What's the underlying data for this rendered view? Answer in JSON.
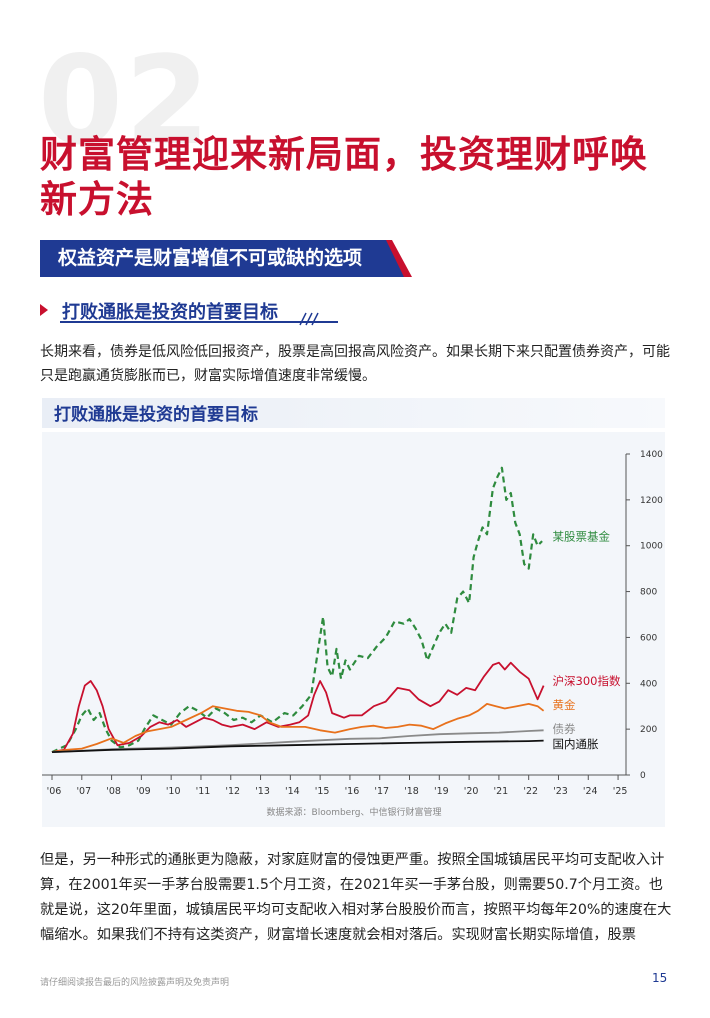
{
  "section_number": "02",
  "title": "财富管理迎来新局面，投资理财呼唤新方法",
  "banner": "权益资产是财富增值不可或缺的选项",
  "subheading": "打败通胀是投资的首要目标",
  "para1": "长期来看，债券是低风险低回报资产，股票是高回报高风险资产。如果长期下来只配置债券资产，可能只是跑赢通货膨胀而已，财富实际增值速度非常缓慢。",
  "chart_heading": "打败通胀是投资的首要目标",
  "chart_source": "数据来源：Bloomberg、中信银行财富管理",
  "para2": "但是，另一种形式的通胀更为隐蔽，对家庭财富的侵蚀更严重。按照全国城镇居民平均可支配收入计算，在2001年买一手茅台股需要1.5个月工资，在2021年买一手茅台股，则需要50.7个月工资。也就是说，这20年里面，城镇居民平均可支配收入相对茅台股股价而言，按照平均每年20%的速度在大幅缩水。如果我们不持有这类资产，财富增长速度就会相对落后。实现财富长期实际增值，股票",
  "footer_note": "请仔细阅读报告最后的风险披露声明及免责声明",
  "page_number": "15",
  "colors": {
    "brand_red": "#c8102e",
    "brand_blue": "#1f3a93"
  },
  "chart_data": {
    "type": "line",
    "x_ticks": [
      "'06",
      "'07",
      "'08",
      "'09",
      "'10",
      "'11",
      "'12",
      "'13",
      "'14",
      "'15",
      "'16",
      "'17",
      "'18",
      "'19",
      "'20",
      "'21",
      "'22",
      "'23",
      "'24",
      "'25"
    ],
    "y_ticks": [
      0,
      200,
      400,
      600,
      800,
      1000,
      1200,
      1400
    ],
    "ylim": [
      0,
      1400
    ],
    "xlim": [
      2006,
      2025.3
    ],
    "y_axis_side": "right",
    "series": [
      {
        "name": "某股票基金",
        "color": "#2e8b3e",
        "dash": true,
        "x": [
          2006,
          2006.5,
          2006.8,
          2007,
          2007.2,
          2007.4,
          2007.6,
          2007.8,
          2008,
          2008.3,
          2008.6,
          2008.9,
          2009.1,
          2009.4,
          2009.7,
          2010,
          2010.3,
          2010.6,
          2010.9,
          2011.2,
          2011.5,
          2011.8,
          2012.1,
          2012.4,
          2012.7,
          2013,
          2013.4,
          2013.8,
          2014.1,
          2014.4,
          2014.7,
          2014.9,
          2015.1,
          2015.25,
          2015.4,
          2015.55,
          2015.7,
          2015.85,
          2016,
          2016.3,
          2016.6,
          2016.9,
          2017.2,
          2017.5,
          2017.8,
          2018,
          2018.2,
          2018.4,
          2018.6,
          2018.8,
          2019,
          2019.2,
          2019.4,
          2019.6,
          2019.8,
          2020,
          2020.15,
          2020.3,
          2020.45,
          2020.6,
          2020.8,
          2020.95,
          2021.1,
          2021.25,
          2021.4,
          2021.55,
          2021.7,
          2021.85,
          2022,
          2022.15,
          2022.3,
          2022.45
        ],
        "y": [
          100,
          130,
          200,
          260,
          290,
          240,
          270,
          200,
          150,
          120,
          130,
          150,
          200,
          260,
          240,
          220,
          270,
          300,
          280,
          250,
          290,
          270,
          240,
          250,
          230,
          260,
          230,
          270,
          260,
          300,
          350,
          520,
          690,
          470,
          430,
          550,
          420,
          500,
          460,
          520,
          510,
          560,
          600,
          670,
          660,
          680,
          640,
          590,
          500,
          560,
          620,
          660,
          620,
          770,
          800,
          750,
          950,
          1020,
          1080,
          1050,
          1250,
          1300,
          1340,
          1200,
          1230,
          1100,
          1050,
          920,
          900,
          1050,
          1000,
          1020
        ]
      },
      {
        "name": "沪深300指数",
        "color": "#c8102e",
        "dash": false,
        "x": [
          2006,
          2006.4,
          2006.7,
          2006.9,
          2007.1,
          2007.3,
          2007.5,
          2007.7,
          2007.9,
          2008.2,
          2008.6,
          2009,
          2009.3,
          2009.6,
          2009.9,
          2010.2,
          2010.5,
          2010.8,
          2011.1,
          2011.4,
          2011.7,
          2012,
          2012.4,
          2012.8,
          2013.2,
          2013.6,
          2014,
          2014.3,
          2014.6,
          2014.8,
          2015,
          2015.2,
          2015.4,
          2015.6,
          2015.8,
          2016,
          2016.4,
          2016.8,
          2017.2,
          2017.6,
          2018,
          2018.3,
          2018.7,
          2019,
          2019.3,
          2019.6,
          2019.9,
          2020.2,
          2020.5,
          2020.8,
          2021,
          2021.2,
          2021.4,
          2021.7,
          2022,
          2022.3,
          2022.5
        ],
        "y": [
          100,
          110,
          180,
          300,
          390,
          410,
          370,
          300,
          200,
          130,
          140,
          170,
          210,
          230,
          220,
          240,
          210,
          230,
          250,
          240,
          220,
          210,
          220,
          200,
          230,
          210,
          220,
          230,
          260,
          350,
          410,
          360,
          270,
          260,
          250,
          260,
          260,
          300,
          320,
          380,
          370,
          330,
          300,
          320,
          370,
          350,
          380,
          370,
          430,
          480,
          490,
          460,
          490,
          450,
          420,
          330,
          390
        ]
      },
      {
        "name": "黄金",
        "color": "#e8711c",
        "dash": false,
        "x": [
          2006,
          2006.5,
          2007,
          2007.5,
          2008,
          2008.4,
          2008.8,
          2009.2,
          2009.6,
          2010,
          2010.5,
          2011,
          2011.4,
          2011.8,
          2012.2,
          2012.6,
          2013,
          2013.3,
          2013.7,
          2014,
          2014.5,
          2015,
          2015.5,
          2016,
          2016.4,
          2016.8,
          2017.2,
          2017.6,
          2018,
          2018.4,
          2018.8,
          2019.2,
          2019.6,
          2020,
          2020.3,
          2020.6,
          2020.9,
          2021.2,
          2021.6,
          2022,
          2022.3,
          2022.5
        ],
        "y": [
          100,
          110,
          115,
          135,
          160,
          140,
          170,
          190,
          200,
          210,
          240,
          270,
          300,
          290,
          280,
          275,
          260,
          230,
          210,
          210,
          210,
          195,
          185,
          200,
          210,
          215,
          205,
          210,
          220,
          215,
          200,
          225,
          245,
          260,
          280,
          310,
          300,
          290,
          300,
          310,
          300,
          280
        ]
      },
      {
        "name": "债券",
        "color": "#8a8a8a",
        "dash": false,
        "x": [
          2006,
          2008,
          2010,
          2012,
          2014,
          2016,
          2017,
          2018,
          2019,
          2020,
          2021,
          2022,
          2022.5
        ],
        "y": [
          100,
          112,
          120,
          130,
          145,
          158,
          160,
          170,
          178,
          182,
          185,
          192,
          195
        ]
      },
      {
        "name": "国内通胀",
        "color": "#111111",
        "dash": false,
        "x": [
          2006,
          2008,
          2010,
          2012,
          2014,
          2016,
          2018,
          2020,
          2022,
          2022.5
        ],
        "y": [
          100,
          110,
          115,
          125,
          130,
          135,
          140,
          145,
          148,
          150
        ]
      }
    ]
  }
}
